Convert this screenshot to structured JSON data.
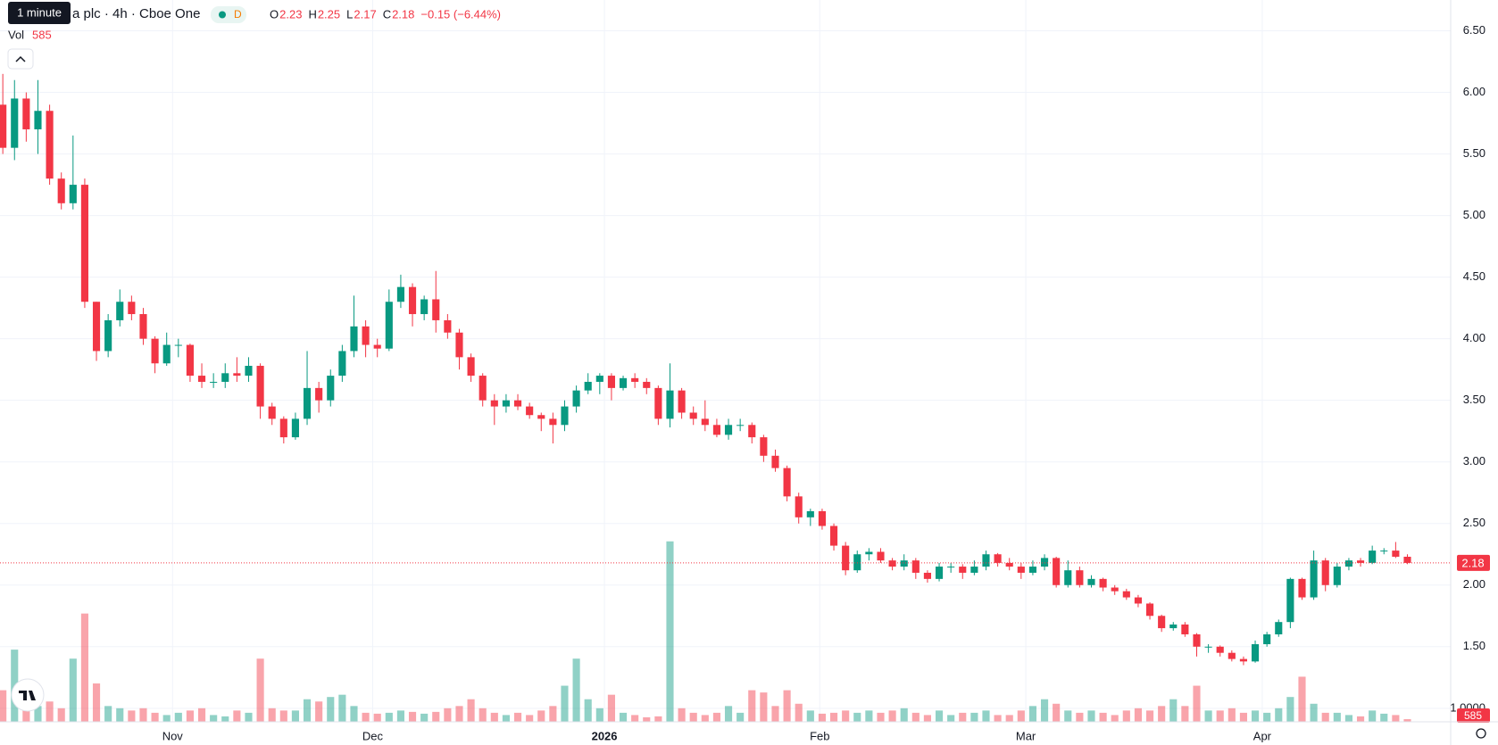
{
  "chart_data": {
    "type": "candlestick",
    "title": "a plc · 4h · Cboe One",
    "tooltip": "1 minute",
    "session": "D",
    "ohlc_labels": [
      "O",
      "H",
      "L",
      "C"
    ],
    "change": "−0.15 (−6.44%)",
    "volume_label": "Vol",
    "up_color": "#089981",
    "down_color": "#f23645",
    "ylim": [
      0.89,
      6.75
    ],
    "yticks": [
      {
        "value": 1,
        "label": "1.0000"
      },
      {
        "value": 1.5,
        "label": "1.50"
      },
      {
        "value": 2,
        "label": "2.00"
      },
      {
        "value": 2.5,
        "label": "2.50"
      },
      {
        "value": 3,
        "label": "3.00"
      },
      {
        "value": 3.5,
        "label": "3.50"
      },
      {
        "value": 4,
        "label": "4.00"
      },
      {
        "value": 4.5,
        "label": "4.50"
      },
      {
        "value": 5,
        "label": "5.00"
      },
      {
        "value": 5.5,
        "label": "5.50"
      },
      {
        "value": 6,
        "label": "6.00"
      },
      {
        "value": 6.5,
        "label": "6.50"
      }
    ],
    "xlim": [
      -0.24,
      123.7
    ],
    "xticks": [
      {
        "value": 14.5,
        "label": "Nov"
      },
      {
        "value": 31.6,
        "label": "Dec"
      },
      {
        "value": 51.4,
        "label": "2026"
      },
      {
        "value": 69.8,
        "label": "Feb"
      },
      {
        "value": 87.4,
        "label": "Mar"
      },
      {
        "value": 107.6,
        "label": "Apr"
      }
    ],
    "vollim": [
      0,
      160000
    ],
    "grid": true,
    "candles": [
      [
        5.9,
        6.15,
        5.5,
        5.55,
        7000
      ],
      [
        5.55,
        6.1,
        5.45,
        5.95,
        16000
      ],
      [
        5.95,
        6.0,
        5.6,
        5.7,
        3000
      ],
      [
        5.7,
        6.1,
        5.5,
        5.85,
        3500
      ],
      [
        5.85,
        5.9,
        5.25,
        5.3,
        4500
      ],
      [
        5.3,
        5.35,
        5.05,
        5.1,
        3000
      ],
      [
        5.1,
        5.65,
        5.05,
        5.25,
        14000
      ],
      [
        5.25,
        5.3,
        4.25,
        4.3,
        24000
      ],
      [
        4.3,
        4.3,
        3.82,
        3.9,
        8500
      ],
      [
        3.9,
        4.2,
        3.85,
        4.15,
        3500
      ],
      [
        4.15,
        4.4,
        4.1,
        4.3,
        3000
      ],
      [
        4.3,
        4.35,
        4.15,
        4.2,
        2500
      ],
      [
        4.2,
        4.25,
        3.95,
        4.0,
        3000
      ],
      [
        4.0,
        4.02,
        3.72,
        3.8,
        2000
      ],
      [
        3.8,
        4.05,
        3.78,
        3.95,
        1500
      ],
      [
        3.95,
        4.0,
        3.85,
        3.95,
        2000
      ],
      [
        3.95,
        3.96,
        3.65,
        3.7,
        2500
      ],
      [
        3.7,
        3.8,
        3.6,
        3.65,
        3000
      ],
      [
        3.65,
        3.72,
        3.6,
        3.65,
        1500
      ],
      [
        3.65,
        3.8,
        3.6,
        3.72,
        1200
      ],
      [
        3.72,
        3.85,
        3.65,
        3.7,
        2500
      ],
      [
        3.7,
        3.85,
        3.65,
        3.78,
        2000
      ],
      [
        3.78,
        3.8,
        3.35,
        3.45,
        14000
      ],
      [
        3.45,
        3.48,
        3.3,
        3.35,
        3000
      ],
      [
        3.35,
        3.37,
        3.15,
        3.2,
        2500
      ],
      [
        3.2,
        3.4,
        3.18,
        3.35,
        2500
      ],
      [
        3.35,
        3.9,
        3.3,
        3.6,
        5000
      ],
      [
        3.6,
        3.65,
        3.4,
        3.5,
        4500
      ],
      [
        3.5,
        3.75,
        3.45,
        3.7,
        5500
      ],
      [
        3.7,
        3.95,
        3.65,
        3.9,
        6000
      ],
      [
        3.9,
        4.35,
        3.85,
        4.1,
        3500
      ],
      [
        4.1,
        4.15,
        3.85,
        3.95,
        2000
      ],
      [
        3.95,
        4.0,
        3.85,
        3.92,
        1800
      ],
      [
        3.92,
        4.4,
        3.9,
        4.3,
        2000
      ],
      [
        4.3,
        4.52,
        4.25,
        4.42,
        2500
      ],
      [
        4.42,
        4.45,
        4.1,
        4.2,
        2200
      ],
      [
        4.2,
        4.35,
        4.15,
        4.32,
        1800
      ],
      [
        4.32,
        4.55,
        4.05,
        4.15,
        2200
      ],
      [
        4.15,
        4.2,
        4.0,
        4.05,
        3000
      ],
      [
        4.05,
        4.08,
        3.75,
        3.85,
        3500
      ],
      [
        3.85,
        3.88,
        3.65,
        3.7,
        5000
      ],
      [
        3.7,
        3.72,
        3.45,
        3.5,
        3000
      ],
      [
        3.5,
        3.55,
        3.3,
        3.45,
        2000
      ],
      [
        3.45,
        3.55,
        3.4,
        3.5,
        1500
      ],
      [
        3.5,
        3.55,
        3.42,
        3.45,
        2000
      ],
      [
        3.45,
        3.48,
        3.35,
        3.38,
        1500
      ],
      [
        3.38,
        3.4,
        3.25,
        3.35,
        2500
      ],
      [
        3.35,
        3.4,
        3.15,
        3.3,
        3500
      ],
      [
        3.3,
        3.5,
        3.25,
        3.45,
        8000
      ],
      [
        3.45,
        3.62,
        3.4,
        3.58,
        14000
      ],
      [
        3.58,
        3.72,
        3.55,
        3.65,
        5000
      ],
      [
        3.65,
        3.72,
        3.55,
        3.7,
        3000
      ],
      [
        3.7,
        3.72,
        3.5,
        3.6,
        6000
      ],
      [
        3.6,
        3.7,
        3.58,
        3.68,
        2000
      ],
      [
        3.68,
        3.72,
        3.6,
        3.65,
        1500
      ],
      [
        3.65,
        3.68,
        3.55,
        3.6,
        1000
      ],
      [
        3.6,
        3.62,
        3.3,
        3.35,
        1200
      ],
      [
        3.35,
        3.8,
        3.28,
        3.58,
        40000
      ],
      [
        3.58,
        3.6,
        3.35,
        3.4,
        3000
      ],
      [
        3.4,
        3.45,
        3.3,
        3.35,
        2000
      ],
      [
        3.35,
        3.5,
        3.25,
        3.3,
        1500
      ],
      [
        3.3,
        3.35,
        3.2,
        3.22,
        2000
      ],
      [
        3.22,
        3.35,
        3.18,
        3.3,
        3500
      ],
      [
        3.3,
        3.35,
        3.25,
        3.3,
        2000
      ],
      [
        3.3,
        3.32,
        3.15,
        3.2,
        7000
      ],
      [
        3.2,
        3.22,
        3.0,
        3.05,
        6500
      ],
      [
        3.05,
        3.1,
        2.92,
        2.95,
        3500
      ],
      [
        2.95,
        2.97,
        2.68,
        2.72,
        7000
      ],
      [
        2.72,
        2.75,
        2.5,
        2.55,
        4000
      ],
      [
        2.55,
        2.62,
        2.48,
        2.6,
        2500
      ],
      [
        2.6,
        2.62,
        2.45,
        2.48,
        1800
      ],
      [
        2.48,
        2.5,
        2.28,
        2.32,
        2000
      ],
      [
        2.32,
        2.35,
        2.08,
        2.12,
        2500
      ],
      [
        2.12,
        2.28,
        2.1,
        2.25,
        2000
      ],
      [
        2.25,
        2.3,
        2.2,
        2.27,
        2500
      ],
      [
        2.27,
        2.3,
        2.18,
        2.2,
        2000
      ],
      [
        2.2,
        2.22,
        2.12,
        2.15,
        2500
      ],
      [
        2.15,
        2.25,
        2.12,
        2.2,
        3000
      ],
      [
        2.2,
        2.22,
        2.05,
        2.1,
        2000
      ],
      [
        2.1,
        2.12,
        2.02,
        2.05,
        1500
      ],
      [
        2.05,
        2.18,
        2.03,
        2.15,
        2500
      ],
      [
        2.15,
        2.18,
        2.1,
        2.15,
        1500
      ],
      [
        2.15,
        2.17,
        2.05,
        2.1,
        2000
      ],
      [
        2.1,
        2.2,
        2.08,
        2.15,
        2000
      ],
      [
        2.15,
        2.28,
        2.12,
        2.25,
        2500
      ],
      [
        2.25,
        2.26,
        2.15,
        2.18,
        1500
      ],
      [
        2.18,
        2.22,
        2.12,
        2.15,
        1500
      ],
      [
        2.15,
        2.18,
        2.05,
        2.1,
        2500
      ],
      [
        2.1,
        2.2,
        2.08,
        2.15,
        3500
      ],
      [
        2.15,
        2.25,
        2.12,
        2.22,
        5000
      ],
      [
        2.22,
        2.23,
        1.98,
        2.0,
        4000
      ],
      [
        2.0,
        2.2,
        1.98,
        2.12,
        2500
      ],
      [
        2.12,
        2.15,
        1.98,
        2.0,
        2000
      ],
      [
        2.0,
        2.08,
        1.98,
        2.05,
        2500
      ],
      [
        2.05,
        2.06,
        1.95,
        1.98,
        2000
      ],
      [
        1.98,
        2.0,
        1.92,
        1.95,
        1500
      ],
      [
        1.95,
        1.97,
        1.88,
        1.9,
        2500
      ],
      [
        1.9,
        1.92,
        1.82,
        1.85,
        3000
      ],
      [
        1.85,
        1.86,
        1.72,
        1.75,
        2500
      ],
      [
        1.75,
        1.76,
        1.62,
        1.65,
        3500
      ],
      [
        1.65,
        1.7,
        1.63,
        1.68,
        5000
      ],
      [
        1.68,
        1.7,
        1.58,
        1.6,
        3500
      ],
      [
        1.6,
        1.61,
        1.42,
        1.5,
        8000
      ],
      [
        1.5,
        1.52,
        1.45,
        1.5,
        2500
      ],
      [
        1.5,
        1.51,
        1.42,
        1.45,
        2500
      ],
      [
        1.45,
        1.47,
        1.38,
        1.4,
        3000
      ],
      [
        1.4,
        1.42,
        1.35,
        1.38,
        2000
      ],
      [
        1.38,
        1.55,
        1.37,
        1.52,
        2500
      ],
      [
        1.52,
        1.62,
        1.5,
        1.6,
        2000
      ],
      [
        1.6,
        1.72,
        1.58,
        1.7,
        3000
      ],
      [
        1.7,
        2.06,
        1.65,
        2.05,
        5500
      ],
      [
        2.05,
        2.06,
        1.88,
        1.9,
        10000
      ],
      [
        1.9,
        2.28,
        1.88,
        2.2,
        4000
      ],
      [
        2.2,
        2.22,
        1.95,
        2.0,
        2000
      ],
      [
        2.0,
        2.18,
        1.98,
        2.15,
        2000
      ],
      [
        2.15,
        2.22,
        2.12,
        2.2,
        1500
      ],
      [
        2.2,
        2.22,
        2.15,
        2.18,
        1200
      ],
      [
        2.18,
        2.32,
        2.17,
        2.28,
        2500
      ],
      [
        2.28,
        2.3,
        2.25,
        2.28,
        1800
      ],
      [
        2.28,
        2.35,
        2.22,
        2.23,
        1500
      ],
      [
        2.23,
        2.25,
        2.17,
        2.18,
        585
      ]
    ]
  }
}
